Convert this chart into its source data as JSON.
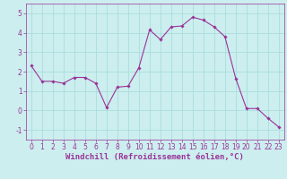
{
  "x": [
    0,
    1,
    2,
    3,
    4,
    5,
    6,
    7,
    8,
    9,
    10,
    11,
    12,
    13,
    14,
    15,
    16,
    17,
    18,
    19,
    20,
    21,
    22,
    23
  ],
  "y": [
    2.3,
    1.5,
    1.5,
    1.4,
    1.7,
    1.7,
    1.4,
    0.15,
    1.2,
    1.25,
    2.2,
    4.15,
    3.65,
    4.3,
    4.35,
    4.8,
    4.65,
    4.3,
    3.8,
    1.65,
    0.1,
    0.1,
    -0.4,
    -0.85
  ],
  "line_color": "#993399",
  "marker": "D",
  "marker_size": 1.8,
  "bg_color": "#cceeee",
  "grid_color": "#aadddd",
  "xlabel": "Windchill (Refroidissement éolien,°C)",
  "xlabel_color": "#993399",
  "tick_color": "#993399",
  "xlim": [
    -0.5,
    23.5
  ],
  "ylim": [
    -1.5,
    5.5
  ],
  "yticks": [
    -1,
    0,
    1,
    2,
    3,
    4,
    5
  ],
  "xticks": [
    0,
    1,
    2,
    3,
    4,
    5,
    6,
    7,
    8,
    9,
    10,
    11,
    12,
    13,
    14,
    15,
    16,
    17,
    18,
    19,
    20,
    21,
    22,
    23
  ],
  "axis_fontsize": 5.5,
  "xlabel_fontsize": 6.5,
  "linewidth": 0.8
}
